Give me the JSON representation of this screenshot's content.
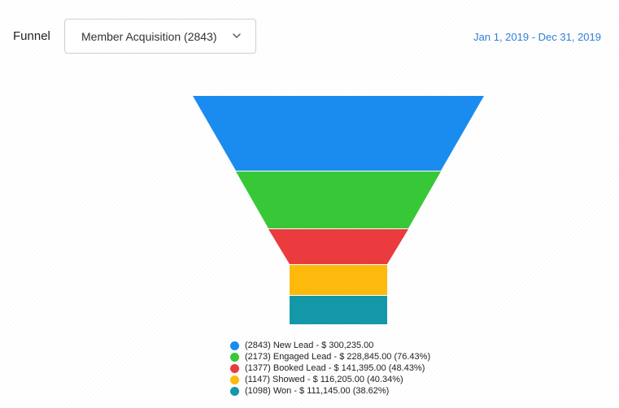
{
  "header": {
    "label": "Funnel",
    "dropdown": {
      "selected": "Member Acquisition (2843)"
    },
    "date_range": "Jan 1, 2019 - Dec 31, 2019"
  },
  "chart_data": {
    "type": "funnel",
    "stages": [
      {
        "name": "New Lead",
        "count": 2843,
        "value": 300235.0,
        "percent": null,
        "color": "#1a8cf0",
        "label": "(2843) New Lead - $ 300,235.00"
      },
      {
        "name": "Engaged Lead",
        "count": 2173,
        "value": 228845.0,
        "percent": 76.43,
        "color": "#38c837",
        "label": "(2173) Engaged Lead - $ 228,845.00 (76.43%)"
      },
      {
        "name": "Booked Lead",
        "count": 1377,
        "value": 141395.0,
        "percent": 48.43,
        "color": "#ea3c3e",
        "label": "(1377) Booked Lead - $ 141,395.00 (48.43%)"
      },
      {
        "name": "Showed",
        "count": 1147,
        "value": 116205.0,
        "percent": 40.34,
        "color": "#fdba0c",
        "label": "(1147) Showed - $ 116,205.00 (40.34%)"
      },
      {
        "name": "Won",
        "count": 1098,
        "value": 111145.0,
        "percent": 38.62,
        "color": "#1398a9",
        "label": "(1098) Won - $ 111,145.00 (38.62%)"
      }
    ],
    "legend_position": "bottom"
  }
}
